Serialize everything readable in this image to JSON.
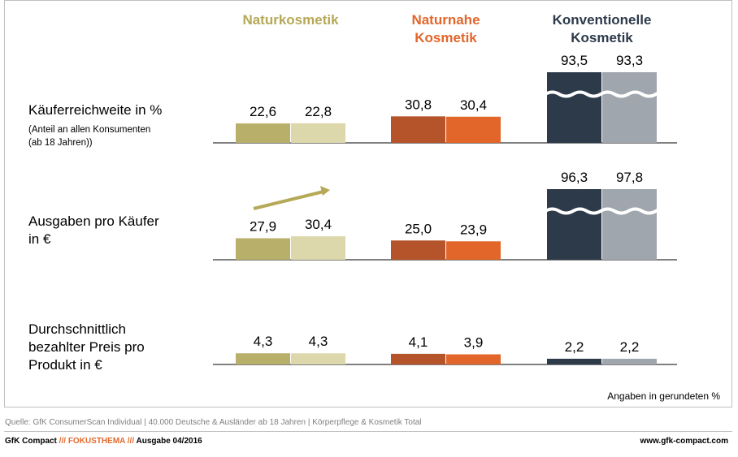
{
  "chart_data": {
    "type": "bar",
    "groups": [
      {
        "name": "Naturkosmetik",
        "lines": [
          "Naturkosmetik"
        ],
        "color_a": "#b8b06a",
        "color_b": "#ddd8ab",
        "head_color": "#b5a856"
      },
      {
        "name": "Naturnahe Kosmetik",
        "lines": [
          "Naturnahe",
          "Kosmetik"
        ],
        "color_a": "#b5532b",
        "color_b": "#e2662a",
        "head_color": "#e2662a"
      },
      {
        "name": "Konventionelle Kosmetik",
        "lines": [
          "Konventionelle",
          "Kosmetik"
        ],
        "color_a": "#2d3a4a",
        "color_b": "#a0a6ad",
        "head_color": "#2d3a4a"
      }
    ],
    "rows": [
      {
        "label_lines": [
          "Käuferreichweite in %"
        ],
        "sub_lines": [
          "(Anteil an allen Konsumenten",
          "(ab 18 Jahren))"
        ],
        "values": [
          [
            22.6,
            22.8
          ],
          [
            30.8,
            30.4
          ],
          [
            93.5,
            93.3
          ]
        ],
        "display": [
          [
            "22,6",
            "22,8"
          ],
          [
            "30,8",
            "30,4"
          ],
          [
            "93,5",
            "93,3"
          ]
        ],
        "broken_axis_group": 2
      },
      {
        "label_lines": [
          "Ausgaben pro Käufer",
          "in €"
        ],
        "sub_lines": [],
        "values": [
          [
            27.9,
            30.4
          ],
          [
            25.0,
            23.9
          ],
          [
            96.3,
            97.8
          ]
        ],
        "display": [
          [
            "27,9",
            "30,4"
          ],
          [
            "25,0",
            "23,9"
          ],
          [
            "96,3",
            "97,8"
          ]
        ],
        "broken_axis_group": 2,
        "trend_arrow_group": 0
      },
      {
        "label_lines": [
          "Durchschnittlich",
          "bezahlter Preis pro",
          "Produkt in €"
        ],
        "sub_lines": [],
        "values": [
          [
            4.3,
            4.3
          ],
          [
            4.1,
            3.9
          ],
          [
            2.2,
            2.2
          ]
        ],
        "display": [
          [
            "4,3",
            "4,3"
          ],
          [
            "4,1",
            "3,9"
          ],
          [
            "2,2",
            "2,2"
          ]
        ]
      }
    ]
  },
  "unit_note": "Angaben in gerundeten  %",
  "source": "Quelle: GfK ConsumerScan Individual | 40.000 Deutsche & Ausländer ab 18 Jahren | Körperpflege & Kosmetik Total",
  "footer": {
    "brand": "GfK Compact",
    "sep1": " /// ",
    "topic": "FOKUSTHEMA",
    "sep2": " /// ",
    "issue": "Ausgabe 04/2016",
    "url": "www.gfk-compact.com"
  }
}
